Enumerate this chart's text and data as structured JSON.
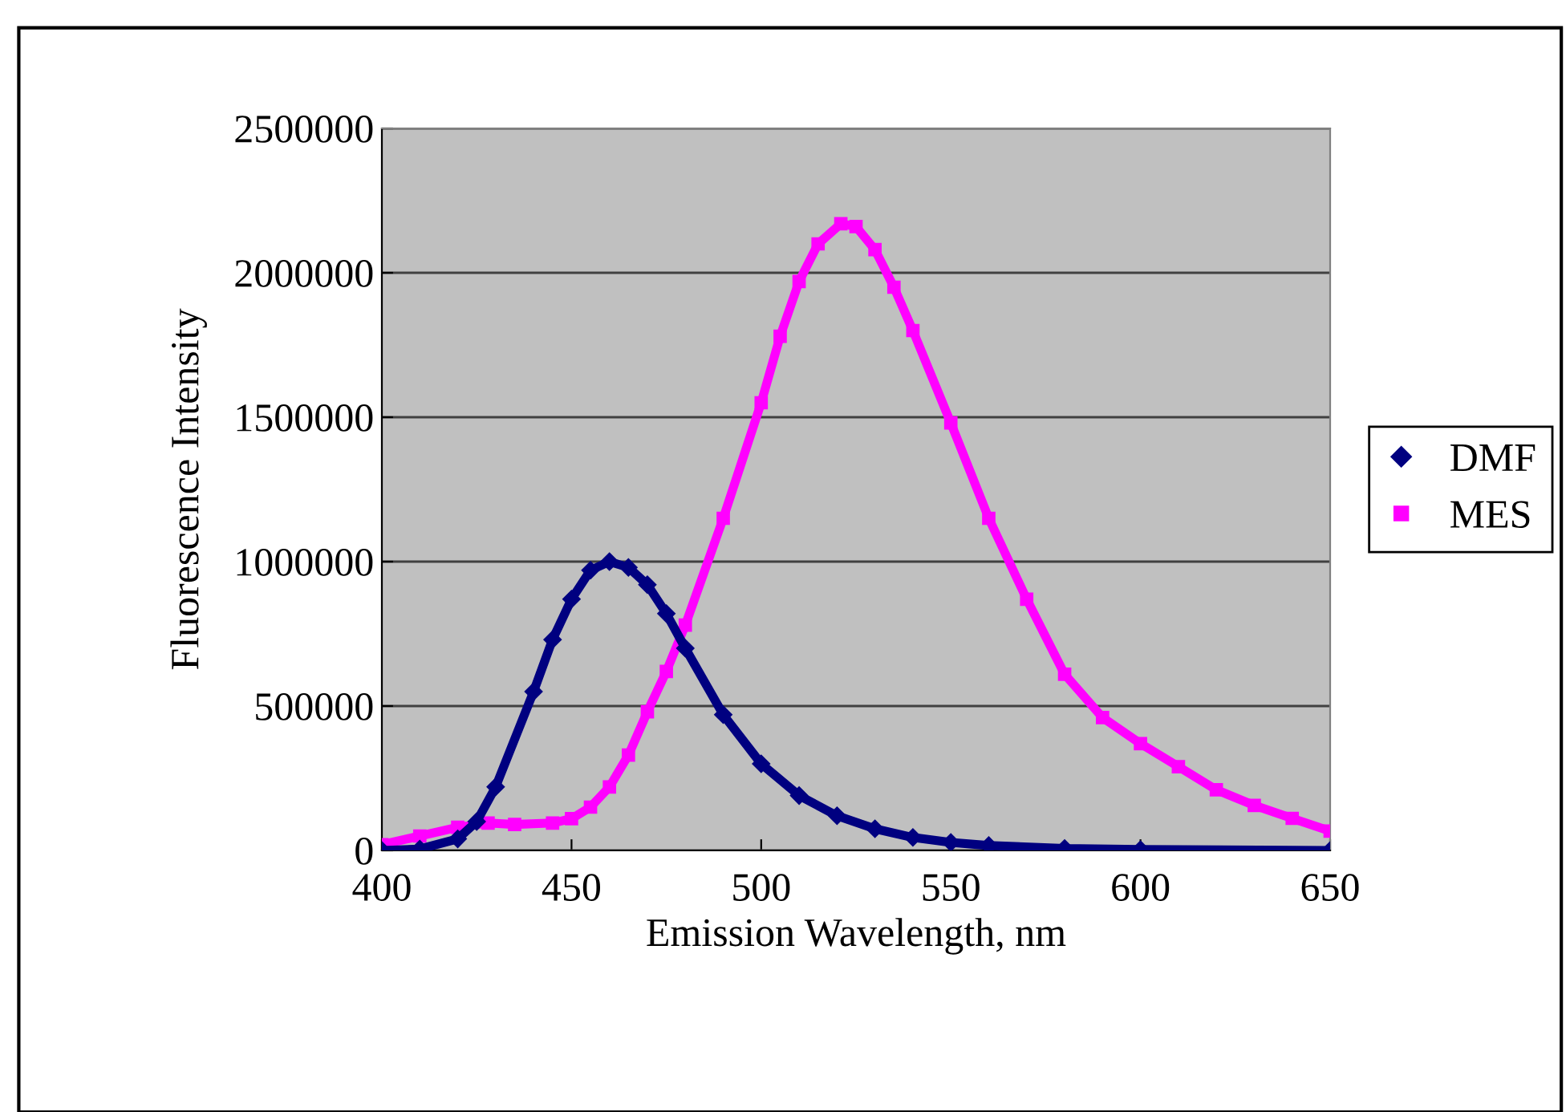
{
  "chart_data": {
    "type": "line",
    "xlabel": "Emission Wavelength, nm",
    "ylabel": "Fluorescence Intensity",
    "xlim": [
      400,
      650
    ],
    "xticks": [
      400,
      450,
      500,
      550,
      600,
      650
    ],
    "ylim": [
      0,
      2500000
    ],
    "yticks": [
      0,
      500000,
      1000000,
      1500000,
      2000000,
      2500000
    ],
    "grid": "y",
    "legend": "right",
    "line_style": "solid",
    "series": [
      {
        "name": "DMF",
        "color": "#000080",
        "marker": "diamond",
        "x": [
          400,
          410,
          420,
          425,
          430,
          440,
          445,
          450,
          455,
          460,
          465,
          470,
          475,
          480,
          490,
          500,
          510,
          520,
          530,
          540,
          550,
          560,
          580,
          600,
          650
        ],
        "values": [
          0,
          5000,
          40000,
          100000,
          220000,
          550000,
          730000,
          870000,
          970000,
          1000000,
          980000,
          920000,
          820000,
          700000,
          470000,
          300000,
          190000,
          120000,
          75000,
          45000,
          28000,
          17000,
          7000,
          3000,
          0
        ]
      },
      {
        "name": "MES",
        "color": "#ff00ff",
        "marker": "square",
        "x": [
          400,
          410,
          420,
          428,
          435,
          445,
          450,
          455,
          460,
          465,
          470,
          475,
          480,
          490,
          500,
          505,
          510,
          515,
          521,
          525,
          530,
          535,
          540,
          550,
          560,
          570,
          580,
          590,
          600,
          610,
          620,
          630,
          640,
          650
        ],
        "values": [
          20000,
          50000,
          80000,
          95000,
          90000,
          95000,
          110000,
          150000,
          220000,
          330000,
          480000,
          620000,
          780000,
          1150000,
          1550000,
          1780000,
          1970000,
          2100000,
          2170000,
          2160000,
          2080000,
          1950000,
          1800000,
          1480000,
          1150000,
          870000,
          610000,
          460000,
          370000,
          290000,
          210000,
          156000,
          111000,
          67000
        ]
      }
    ]
  }
}
